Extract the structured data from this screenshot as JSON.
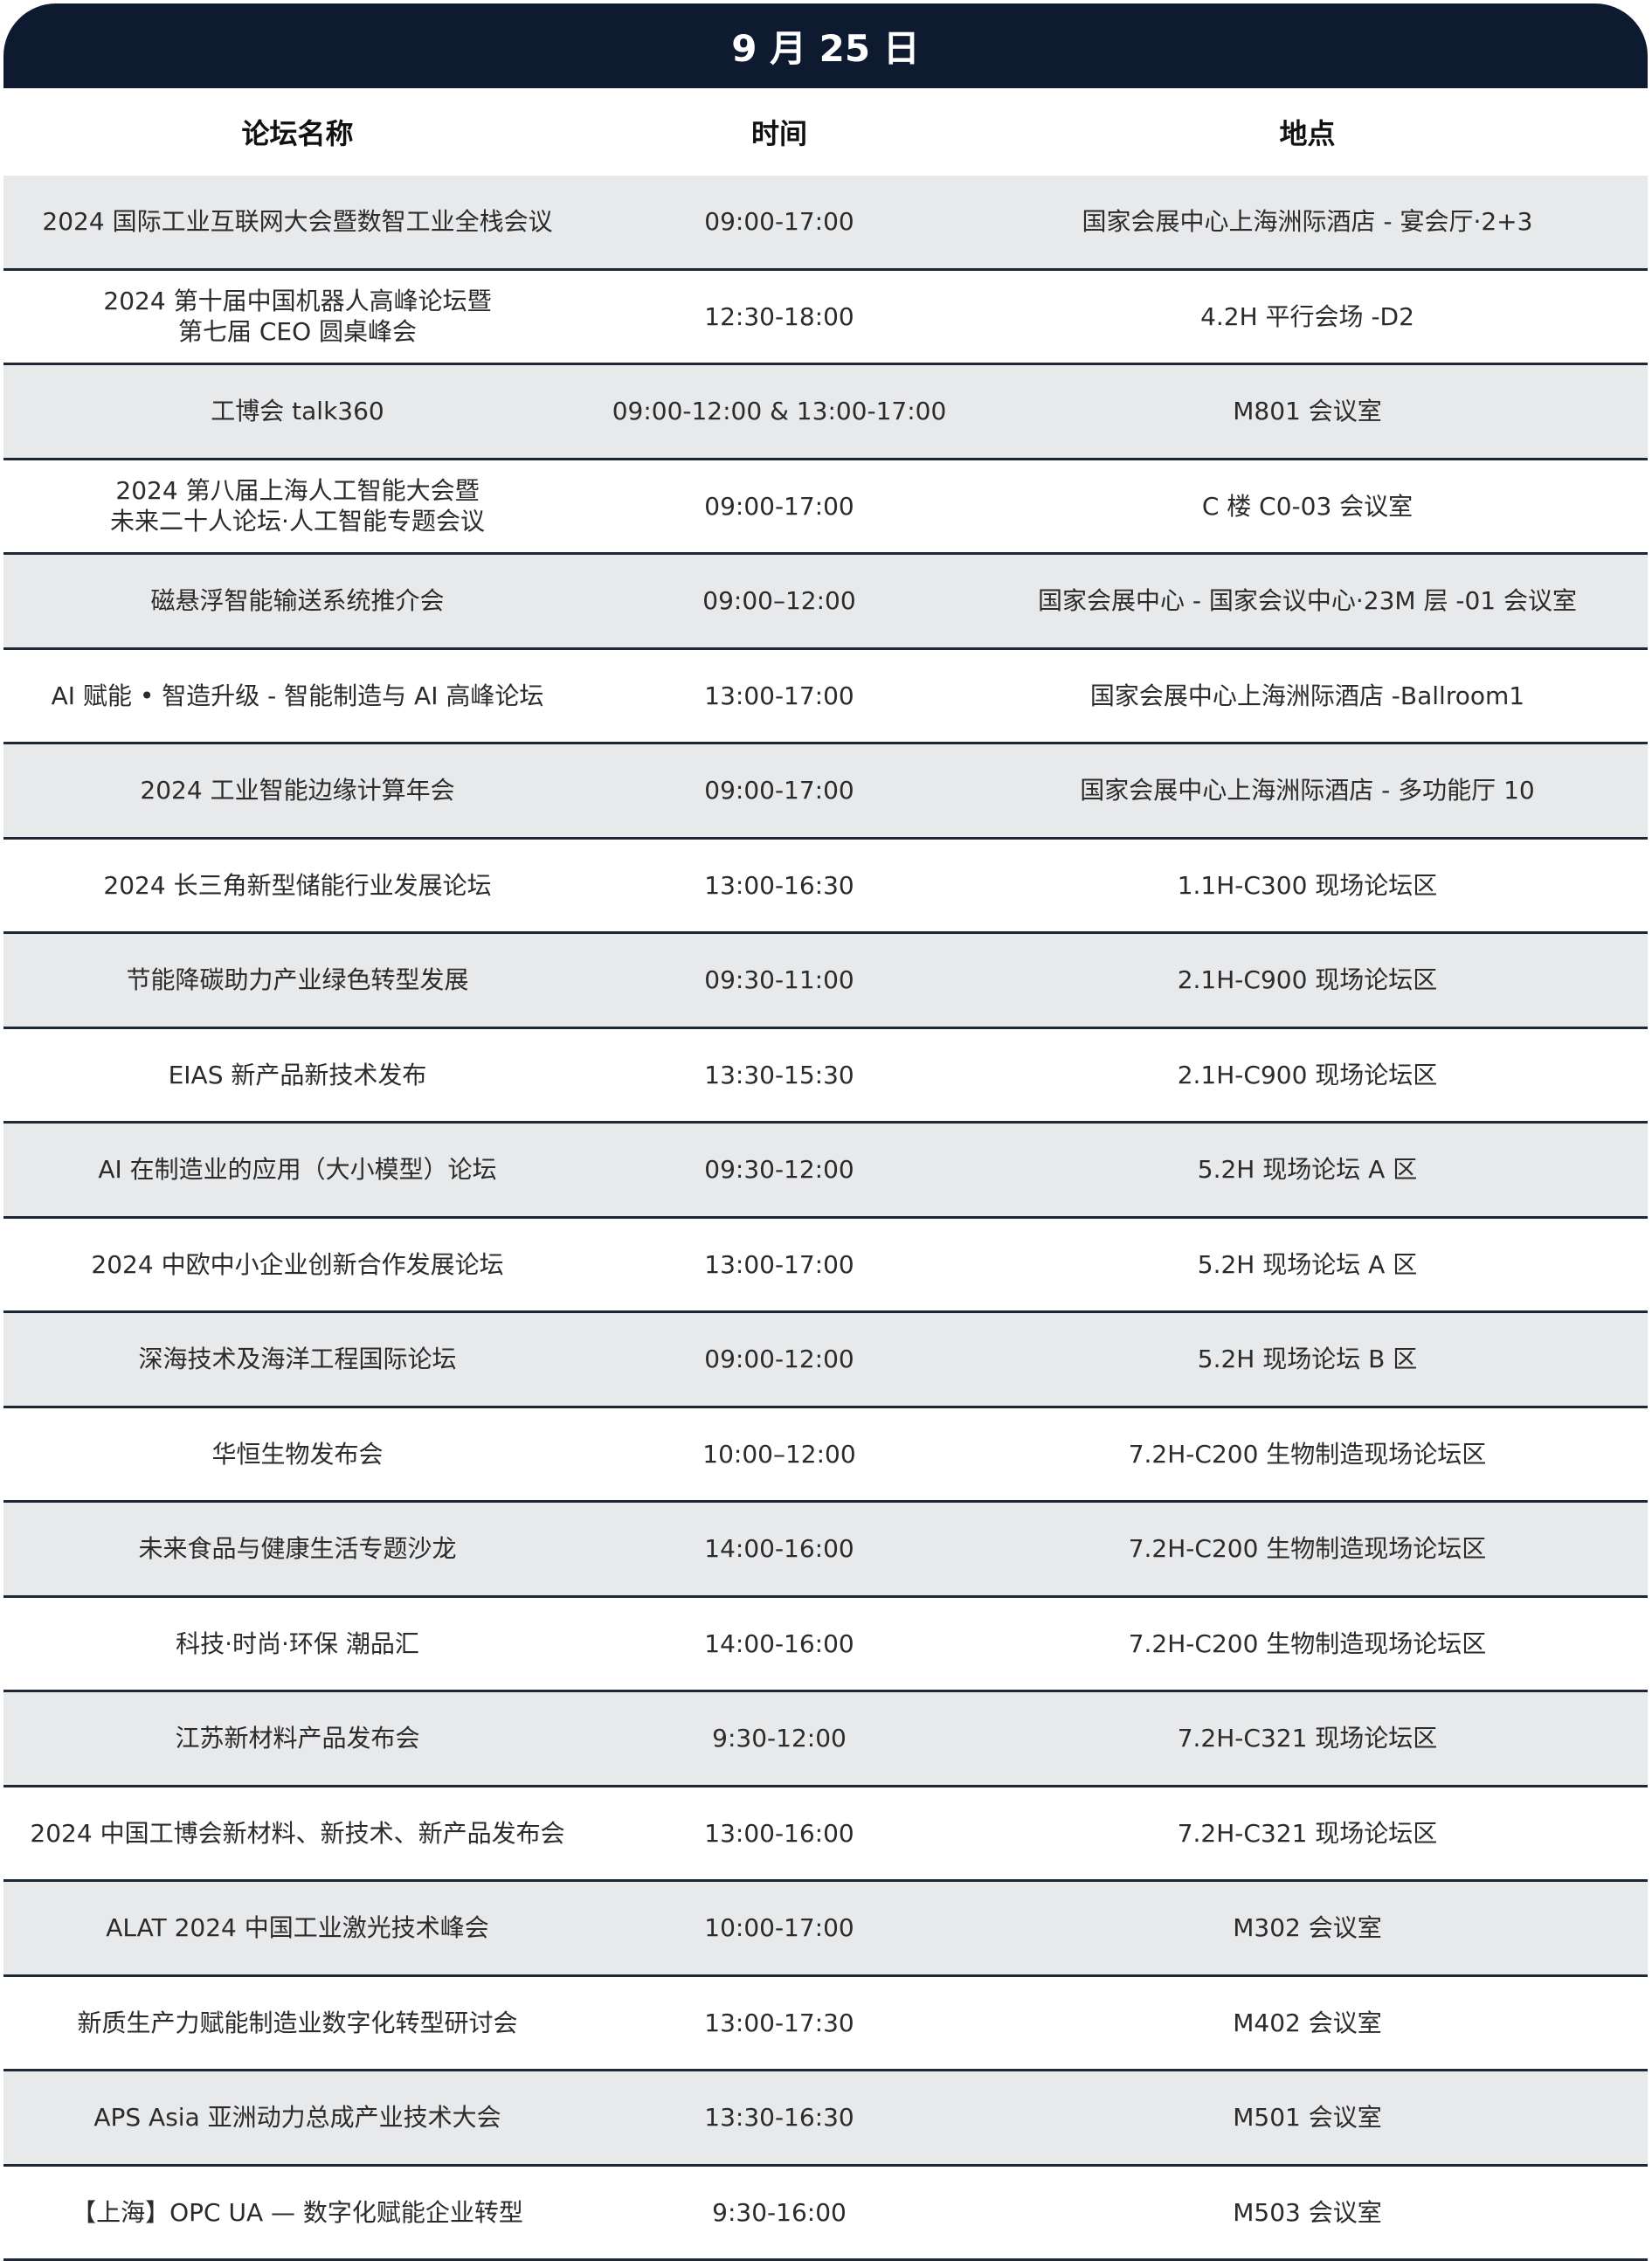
{
  "title": "9 月 25 日",
  "columns": [
    "论坛名称",
    "时间",
    "地点"
  ],
  "rows": [
    {
      "name": "2024 国际工业互联网大会暨数智工业全栈会议",
      "time": "09:00-17:00",
      "place": "国家会展中心上海洲际酒店 - 宴会厅·2+3"
    },
    {
      "name": "2024 第十届中国机器人高峰论坛暨\n第七届 CEO 圆桌峰会",
      "time": "12:30-18:00",
      "place": "4.2H 平行会场 -D2"
    },
    {
      "name": "工博会 talk360",
      "time": "09:00-12:00 & 13:00-17:00",
      "place": "M801 会议室"
    },
    {
      "name": "2024 第八届上海人工智能大会暨\n未来二十人论坛·人工智能专题会议",
      "time": "09:00-17:00",
      "place": "C 楼 C0-03 会议室"
    },
    {
      "name": "磁悬浮智能输送系统推介会",
      "time": "09:00–12:00",
      "place": "国家会展中心 - 国家会议中心·23M 层 -01 会议室"
    },
    {
      "name": "AI 赋能 • 智造升级 - 智能制造与 AI 高峰论坛",
      "time": "13:00-17:00",
      "place": "国家会展中心上海洲际酒店 -Ballroom1"
    },
    {
      "name": "2024 工业智能边缘计算年会",
      "time": "09:00-17:00",
      "place": "国家会展中心上海洲际酒店 - 多功能厅 10"
    },
    {
      "name": "2024 长三角新型储能行业发展论坛",
      "time": "13:00-16:30",
      "place": "1.1H-C300 现场论坛区"
    },
    {
      "name": "节能降碳助力产业绿色转型发展",
      "time": "09:30-11:00",
      "place": "2.1H-C900 现场论坛区"
    },
    {
      "name": "EIAS 新产品新技术发布",
      "time": "13:30-15:30",
      "place": "2.1H-C900 现场论坛区"
    },
    {
      "name": "AI 在制造业的应用（大小模型）论坛",
      "time": "09:30-12:00",
      "place": "5.2H 现场论坛 A 区"
    },
    {
      "name": "2024 中欧中小企业创新合作发展论坛",
      "time": "13:00-17:00",
      "place": "5.2H 现场论坛 A 区"
    },
    {
      "name": "深海技术及海洋工程国际论坛",
      "time": "09:00-12:00",
      "place": "5.2H 现场论坛 B 区"
    },
    {
      "name": "华恒生物发布会",
      "time": "10:00–12:00",
      "place": "7.2H-C200 生物制造现场论坛区"
    },
    {
      "name": "未来食品与健康生活专题沙龙",
      "time": "14:00-16:00",
      "place": "7.2H-C200 生物制造现场论坛区"
    },
    {
      "name": "科技·时尚·环保 潮品汇",
      "time": "14:00-16:00",
      "place": "7.2H-C200 生物制造现场论坛区"
    },
    {
      "name": "江苏新材料产品发布会",
      "time": "9:30-12:00",
      "place": "7.2H-C321 现场论坛区"
    },
    {
      "name": "2024 中国工博会新材料、新技术、新产品发布会",
      "time": "13:00-16:00",
      "place": "7.2H-C321 现场论坛区"
    },
    {
      "name": "ALAT 2024 中国工业激光技术峰会",
      "time": "10:00-17:00",
      "place": "M302 会议室"
    },
    {
      "name": "新质生产力赋能制造业数字化转型研讨会",
      "time": "13:00-17:30",
      "place": "M402 会议室"
    },
    {
      "name": "APS Asia 亚洲动力总成产业技术大会",
      "time": "13:30-16:30",
      "place": "M501 会议室"
    },
    {
      "name": "【上海】OPC UA — 数字化赋能企业转型",
      "time": "9:30-16:00",
      "place": "M503 会议室"
    }
  ],
  "colors": {
    "title_bg": "#0d1a30",
    "alt_row": "#e8e9eb",
    "divider": "#1e2736"
  }
}
